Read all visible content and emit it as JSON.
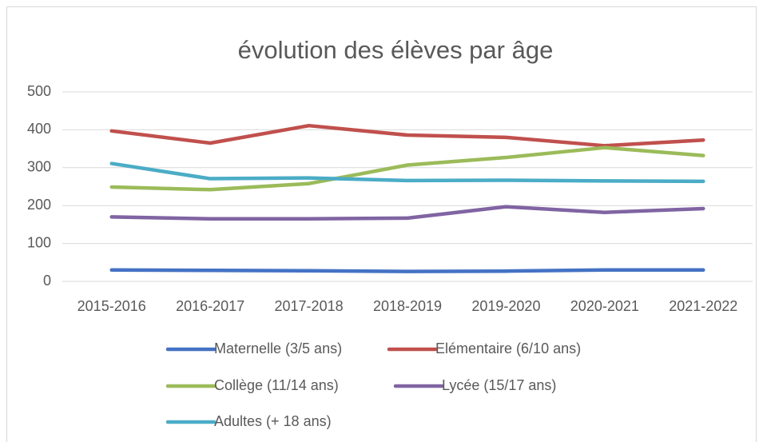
{
  "chart_data": {
    "type": "line",
    "title": "évolution des élèves par âge",
    "categories": [
      "2015-2016",
      "2016-2017",
      "2017-2018",
      "2018-2019",
      "2019-2020",
      "2020-2021",
      "2021-2022"
    ],
    "series": [
      {
        "name": "Maternelle (3/5 ans)",
        "color": "#4472c4",
        "values": [
          30,
          29,
          28,
          26,
          27,
          30,
          30
        ]
      },
      {
        "name": "Elémentaire (6/10 ans)",
        "color": "#c0504d",
        "values": [
          397,
          365,
          411,
          386,
          380,
          358,
          373
        ]
      },
      {
        "name": "Collège (11/14 ans)",
        "color": "#9bbb59",
        "values": [
          249,
          242,
          258,
          307,
          327,
          353,
          332
        ]
      },
      {
        "name": "Lycée (15/17 ans)",
        "color": "#8064a2",
        "values": [
          170,
          165,
          165,
          167,
          197,
          182,
          192
        ]
      },
      {
        "name": "Adultes (+ 18 ans)",
        "color": "#4bacc6",
        "values": [
          311,
          271,
          273,
          266,
          267,
          265,
          264
        ]
      }
    ],
    "ylim": [
      0,
      500
    ],
    "yticks": [
      0,
      100,
      200,
      300,
      400,
      500
    ],
    "grid": true,
    "legend": "bottom"
  }
}
